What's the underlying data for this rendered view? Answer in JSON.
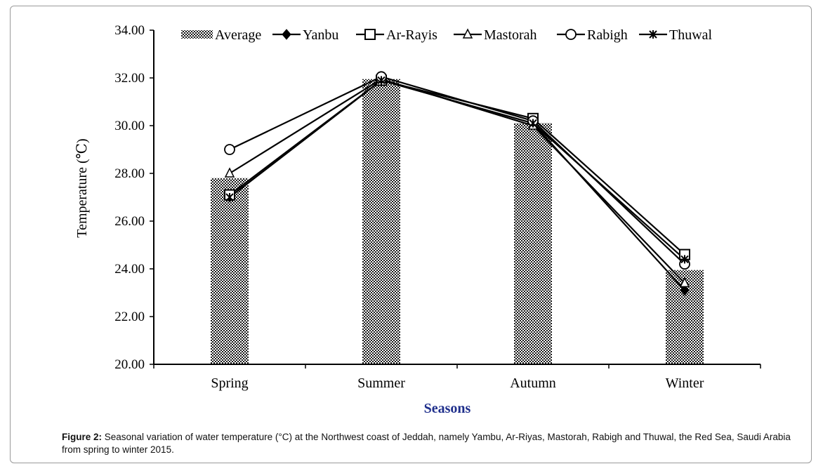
{
  "chart_data": {
    "type": "bar+line",
    "xlabel": "Seasons",
    "ylabel": "Temperature (℃)",
    "ylim": [
      20,
      34
    ],
    "yticks": [
      "20.00",
      "22.00",
      "24.00",
      "26.00",
      "28.00",
      "30.00",
      "32.00",
      "34.00"
    ],
    "categories": [
      "Spring",
      "Summer",
      "Autumn",
      "Winter"
    ],
    "bar_series": {
      "name": "Average",
      "values": [
        27.8,
        31.95,
        30.1,
        23.95
      ]
    },
    "series": [
      {
        "name": "Yanbu",
        "marker": "diamond",
        "values": [
          27.0,
          31.9,
          30.1,
          23.1
        ]
      },
      {
        "name": "Ar-Rayis",
        "marker": "square",
        "values": [
          27.1,
          31.9,
          30.3,
          24.6
        ]
      },
      {
        "name": "Mastorah",
        "marker": "triangle",
        "values": [
          28.0,
          31.95,
          30.0,
          23.4
        ]
      },
      {
        "name": "Rabigh",
        "marker": "circle",
        "values": [
          29.0,
          32.05,
          30.2,
          24.2
        ]
      },
      {
        "name": "Thuwal",
        "marker": "asterisk",
        "values": [
          27.0,
          31.9,
          30.1,
          24.4
        ]
      }
    ],
    "legend_position": "top"
  },
  "caption": {
    "label": "Figure 2:",
    "text": " Seasonal variation of water temperature (°C) at the Northwest coast of Jeddah, namely Yambu, Ar-Riyas, Mastorah, Rabigh and Thuwal, the Red Sea, Saudi Arabia from spring to winter 2015."
  }
}
